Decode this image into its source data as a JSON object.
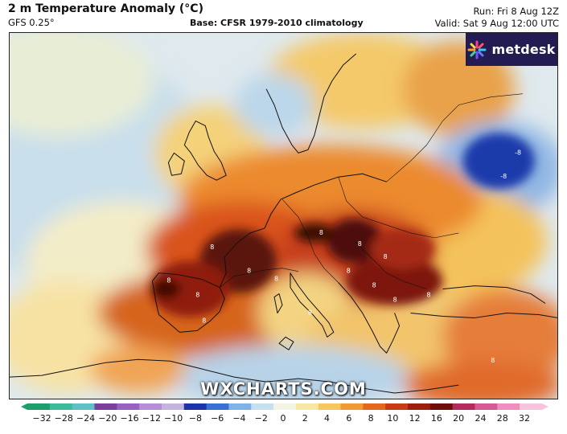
{
  "header": {
    "title": "2 m Temperature Anomaly (°C)",
    "model": "GFS 0.25°",
    "base": "Base: CFSR 1979-2010 climatology",
    "run": "Run: Fri 8 Aug 12Z",
    "valid": "Valid: Sat 9 Aug 12:00 UTC"
  },
  "logo": {
    "text": "metdesk",
    "icon": "metdesk-asterisk-icon"
  },
  "watermark": "WXCHARTS.COM",
  "map": {
    "region": "Europe and North Africa",
    "variable": "2 m temperature anomaly",
    "unit": "°C",
    "contour_labels": [
      "8",
      "8",
      "8",
      "8",
      "8",
      "8",
      "8",
      "8",
      "8",
      "8",
      "8",
      "8",
      "8",
      "-8",
      "-8",
      "8",
      "8"
    ]
  },
  "legend": {
    "ticks": [
      "−32",
      "−28",
      "−24",
      "−20",
      "−16",
      "−12",
      "−10",
      "−8",
      "−6",
      "−4",
      "−2",
      "0",
      "2",
      "4",
      "6",
      "8",
      "10",
      "12",
      "16",
      "20",
      "24",
      "28",
      "32"
    ],
    "colors": [
      "#1d9e6a",
      "#3dbb9a",
      "#5fc0c8",
      "#7a3f9c",
      "#9b61c0",
      "#b68ed6",
      "#c7b3e0",
      "#1c34a8",
      "#3a6fd4",
      "#7fb2e6",
      "#c7e0f0",
      "#f3f3e6",
      "#f8e7a4",
      "#f7c65e",
      "#f19a34",
      "#e4661f",
      "#c93b16",
      "#9c1f10",
      "#6e1009",
      "#b42b5e",
      "#d85a92",
      "#ef8fbf",
      "#f7c3df"
    ]
  }
}
